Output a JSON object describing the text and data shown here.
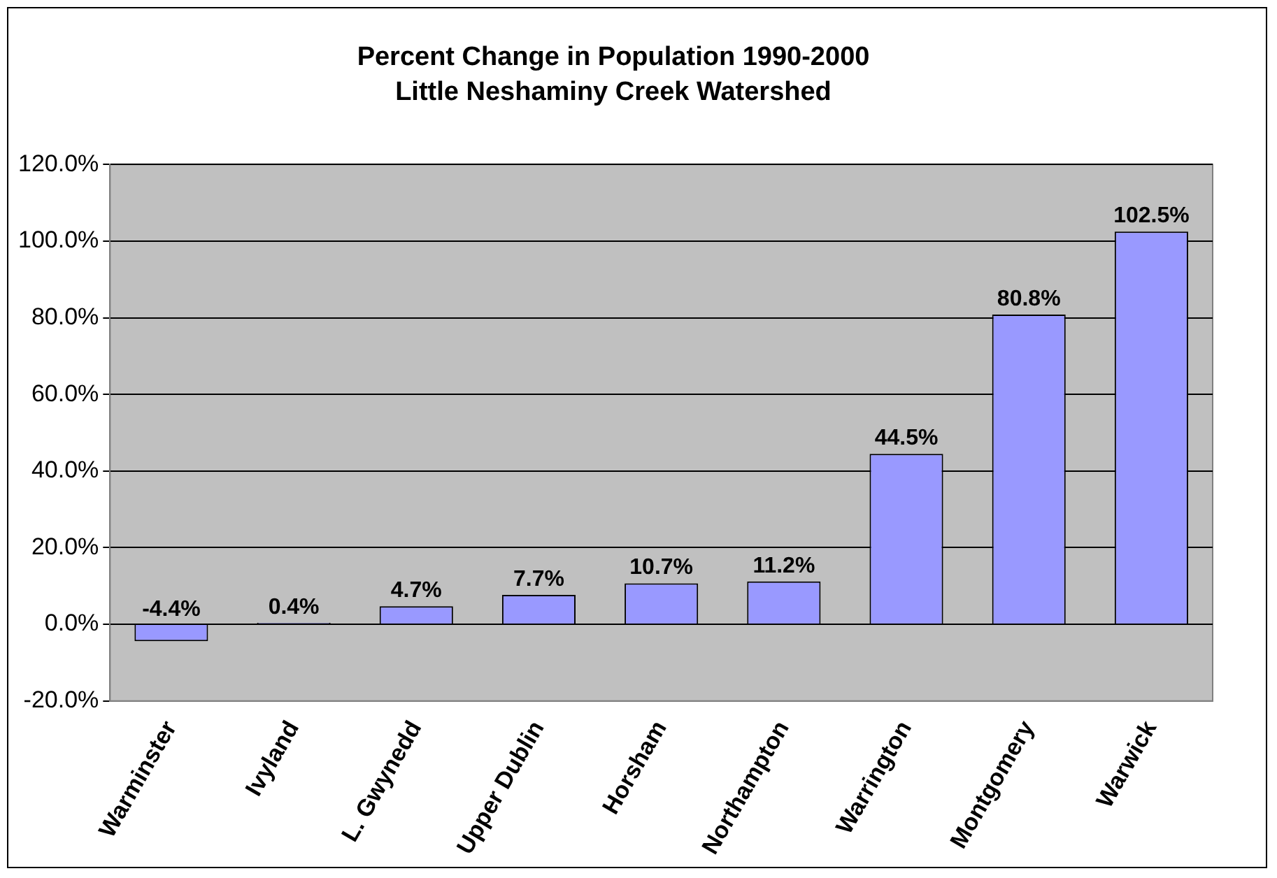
{
  "chart_data": {
    "type": "bar",
    "title": "Percent Change in Population 1990-2000",
    "subtitle": "Little Neshaminy Creek Watershed",
    "categories": [
      "Warminster",
      "Ivyland",
      "L. Gwynedd",
      "Upper Dublin",
      "Horsham",
      "Northampton",
      "Warrington",
      "Montgomery",
      "Warwick"
    ],
    "values": [
      -4.4,
      0.4,
      4.7,
      7.7,
      10.7,
      11.2,
      44.5,
      80.8,
      102.5
    ],
    "value_labels": [
      "-4.4%",
      "0.4%",
      "4.7%",
      "7.7%",
      "10.7%",
      "11.2%",
      "44.5%",
      "80.8%",
      "102.5%"
    ],
    "color": "#9999ff",
    "ylim": [
      -20,
      120
    ],
    "yticks": [
      {
        "value": -20,
        "label": "-20.0%"
      },
      {
        "value": 0,
        "label": "0.0%"
      },
      {
        "value": 20,
        "label": "20.0%"
      },
      {
        "value": 40,
        "label": "40.0%"
      },
      {
        "value": 60,
        "label": "60.0%"
      },
      {
        "value": 80,
        "label": "80.0%"
      },
      {
        "value": 100,
        "label": "100.0%"
      },
      {
        "value": 120,
        "label": "120.0%"
      }
    ],
    "grid": "y",
    "legend": false
  }
}
